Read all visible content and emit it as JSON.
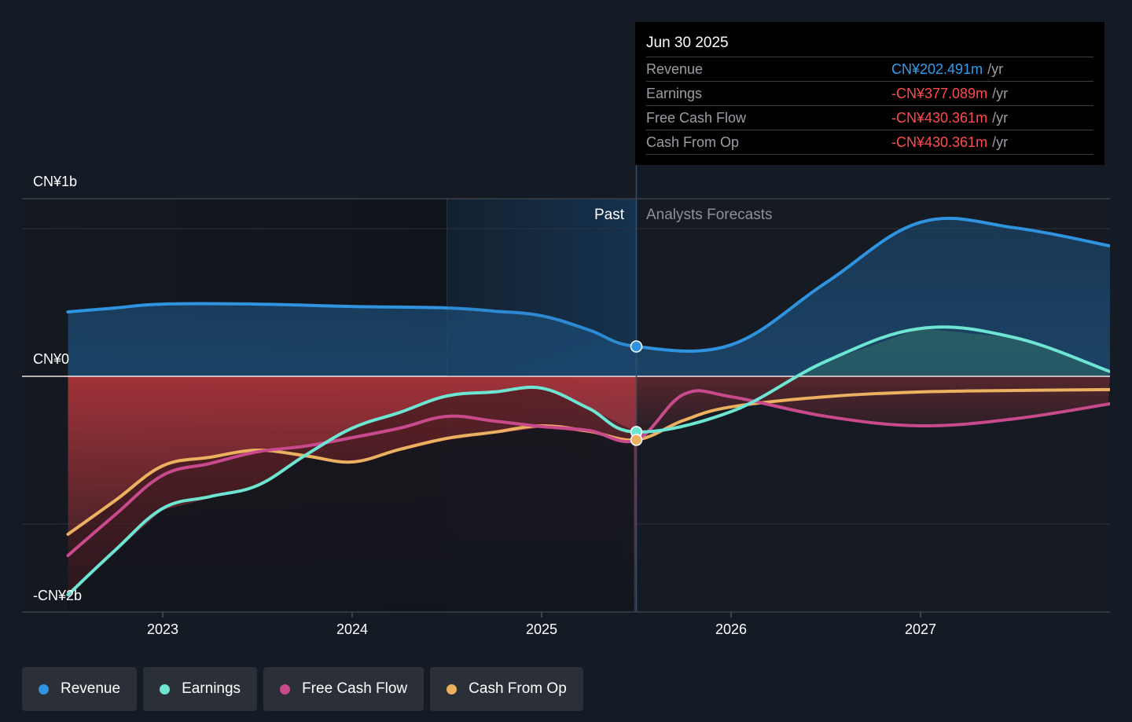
{
  "tooltip": {
    "date": "Jun 30 2025",
    "rows": [
      {
        "label": "Revenue",
        "value": "CN¥202.491m",
        "unit": "/yr",
        "positive": true
      },
      {
        "label": "Earnings",
        "value": "-CN¥377.089m",
        "unit": "/yr",
        "positive": false
      },
      {
        "label": "Free Cash Flow",
        "value": "-CN¥430.361m",
        "unit": "/yr",
        "positive": false
      },
      {
        "label": "Cash From Op",
        "value": "-CN¥430.361m",
        "unit": "/yr",
        "positive": false
      }
    ]
  },
  "regions": {
    "past_label": "Past",
    "forecast_label": "Analysts Forecasts"
  },
  "colors": {
    "revenue": "#2f93e0",
    "earnings": "#6ee5d3",
    "free_cash_flow": "#c94a8c",
    "cash_from_op": "#ebb060",
    "negative_fill": "#a8343a",
    "background": "#151b24"
  },
  "legend": [
    {
      "label": "Revenue",
      "color": "#2f93e0"
    },
    {
      "label": "Earnings",
      "color": "#6ee5d3"
    },
    {
      "label": "Free Cash Flow",
      "color": "#c94a8c"
    },
    {
      "label": "Cash From Op",
      "color": "#ebb060"
    }
  ],
  "chart_data": {
    "type": "line",
    "title": "",
    "xlabel": "",
    "ylabel": "",
    "units": "CN¥ billions",
    "y_tick_labels": [
      {
        "value": 1.2,
        "label": "CN¥1b"
      },
      {
        "value": 0,
        "label": "CN¥0"
      },
      {
        "value": -1.6,
        "label": "-CN¥2b"
      }
    ],
    "gridlines": [
      1.0,
      0,
      -1.0
    ],
    "ylim": [
      -1.6,
      1.2
    ],
    "xlim": [
      2022.26,
      2028.0
    ],
    "x_ticks": [
      {
        "value": 2023,
        "label": "2023"
      },
      {
        "value": 2024,
        "label": "2024"
      },
      {
        "value": 2025,
        "label": "2025"
      },
      {
        "value": 2026,
        "label": "2026"
      },
      {
        "value": 2027,
        "label": "2027"
      }
    ],
    "highlight_range": [
      2024.5,
      2025.5
    ],
    "past_forecast_split": 2025.5,
    "hover_x": 2025.5,
    "series": [
      {
        "name": "Revenue",
        "key": "revenue",
        "x": [
          2022.5,
          2022.75,
          2023.0,
          2023.5,
          2024.0,
          2024.5,
          2024.75,
          2025.0,
          2025.25,
          2025.5,
          2026.0,
          2026.5,
          2027.0,
          2027.5,
          2028.0
        ],
        "values": [
          0.436,
          0.463,
          0.489,
          0.489,
          0.473,
          0.463,
          0.441,
          0.41,
          0.314,
          0.202,
          0.213,
          0.633,
          1.043,
          1.005,
          0.883
        ]
      },
      {
        "name": "Earnings",
        "key": "earnings",
        "x": [
          2022.5,
          2022.75,
          2023.0,
          2023.25,
          2023.5,
          2023.75,
          2024.0,
          2024.25,
          2024.5,
          2024.75,
          2025.0,
          2025.25,
          2025.5,
          2026.0,
          2026.5,
          2027.0,
          2027.5,
          2028.0
        ],
        "values": [
          -1.479,
          -1.176,
          -0.894,
          -0.814,
          -0.739,
          -0.537,
          -0.351,
          -0.245,
          -0.133,
          -0.106,
          -0.08,
          -0.218,
          -0.377,
          -0.239,
          0.101,
          0.324,
          0.261,
          0.032
        ]
      },
      {
        "name": "Free Cash Flow",
        "key": "free_cash_flow",
        "x": [
          2022.5,
          2022.75,
          2023.0,
          2023.25,
          2023.5,
          2023.75,
          2024.0,
          2024.25,
          2024.5,
          2024.75,
          2025.0,
          2025.25,
          2025.5,
          2025.75,
          2026.0,
          2026.5,
          2027.0,
          2027.5,
          2028.0
        ],
        "values": [
          -1.213,
          -0.936,
          -0.67,
          -0.59,
          -0.511,
          -0.473,
          -0.415,
          -0.351,
          -0.271,
          -0.303,
          -0.34,
          -0.367,
          -0.43,
          -0.122,
          -0.138,
          -0.271,
          -0.335,
          -0.287,
          -0.186
        ]
      },
      {
        "name": "Cash From Op",
        "key": "cash_from_op",
        "x": [
          2022.5,
          2022.75,
          2023.0,
          2023.25,
          2023.5,
          2023.75,
          2024.0,
          2024.25,
          2024.5,
          2024.75,
          2025.0,
          2025.25,
          2025.5,
          2025.75,
          2026.0,
          2026.5,
          2027.0,
          2027.5,
          2028.0
        ],
        "values": [
          -1.069,
          -0.84,
          -0.606,
          -0.548,
          -0.5,
          -0.537,
          -0.58,
          -0.495,
          -0.42,
          -0.378,
          -0.335,
          -0.372,
          -0.43,
          -0.298,
          -0.207,
          -0.138,
          -0.106,
          -0.096,
          -0.09
        ]
      }
    ]
  }
}
